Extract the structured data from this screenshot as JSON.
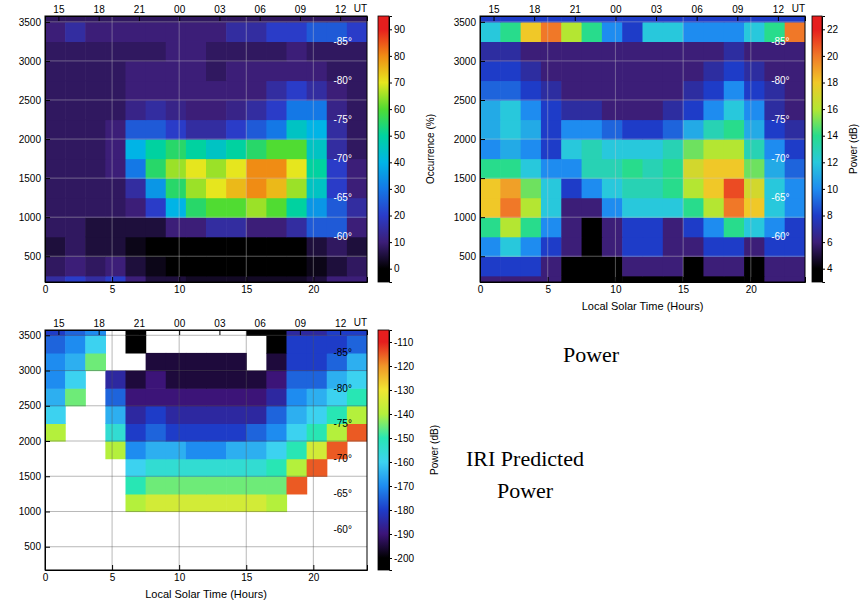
{
  "chart_data": [
    {
      "type": "heatmap",
      "xlim": [
        0,
        24
      ],
      "xticks": [
        0,
        5,
        10,
        15,
        20
      ],
      "ylim": [
        170,
        3575
      ],
      "yticks": [
        500,
        1000,
        1500,
        2000,
        2500,
        3000,
        3500
      ],
      "x2ticks": [
        {
          "value": 1,
          "label": "15"
        },
        {
          "value": 4,
          "label": "18"
        },
        {
          "value": 7,
          "label": "21"
        },
        {
          "value": 10,
          "label": "00"
        },
        {
          "value": 13,
          "label": "03"
        },
        {
          "value": 16,
          "label": "06"
        },
        {
          "value": 19,
          "label": "09"
        },
        {
          "value": 22,
          "label": "12"
        }
      ],
      "x2_label": "UT",
      "grid": true,
      "x_edges": [
        0,
        1.5,
        3,
        4.5,
        6,
        7.5,
        9,
        10.5,
        12,
        13.5,
        15,
        16.5,
        18,
        19.5,
        21,
        22.5,
        24
      ],
      "y_edges": [
        0,
        250,
        500,
        750,
        1000,
        1250,
        1500,
        1750,
        2000,
        2250,
        2500,
        2750,
        3000,
        3250,
        3500,
        3750
      ],
      "z": [
        [
          15,
          20,
          15,
          20,
          10,
          5,
          5,
          3,
          3,
          3,
          3,
          3,
          3,
          5,
          10,
          10
        ],
        [
          8,
          10,
          8,
          10,
          5,
          2,
          0,
          0,
          0,
          0,
          0,
          0,
          0,
          2,
          5,
          8
        ],
        [
          5,
          8,
          5,
          5,
          2,
          0,
          0,
          0,
          0,
          0,
          0,
          0,
          0,
          5,
          8,
          5
        ],
        [
          8,
          8,
          5,
          5,
          5,
          5,
          10,
          10,
          15,
          15,
          10,
          10,
          15,
          25,
          25,
          10
        ],
        [
          8,
          8,
          8,
          8,
          10,
          20,
          40,
          55,
          60,
          60,
          65,
          60,
          50,
          35,
          25,
          15
        ],
        [
          8,
          8,
          8,
          8,
          15,
          35,
          55,
          65,
          70,
          75,
          80,
          75,
          65,
          45,
          20,
          10
        ],
        [
          8,
          8,
          8,
          10,
          30,
          55,
          65,
          70,
          65,
          70,
          80,
          80,
          70,
          50,
          20,
          10
        ],
        [
          8,
          8,
          8,
          10,
          40,
          50,
          55,
          50,
          45,
          50,
          55,
          60,
          60,
          45,
          15,
          8
        ],
        [
          8,
          8,
          8,
          10,
          25,
          25,
          20,
          15,
          15,
          20,
          25,
          30,
          45,
          40,
          15,
          8
        ],
        [
          8,
          8,
          8,
          8,
          12,
          15,
          12,
          10,
          10,
          12,
          15,
          20,
          30,
          30,
          12,
          8
        ],
        [
          8,
          8,
          8,
          8,
          10,
          10,
          10,
          10,
          10,
          10,
          10,
          15,
          20,
          15,
          10,
          8
        ],
        [
          8,
          8,
          8,
          8,
          10,
          10,
          10,
          10,
          8,
          10,
          10,
          10,
          10,
          10,
          8,
          8
        ],
        [
          8,
          8,
          8,
          8,
          8,
          8,
          10,
          10,
          8,
          8,
          8,
          8,
          10,
          8,
          8,
          8
        ],
        [
          10,
          15,
          10,
          10,
          10,
          10,
          10,
          10,
          10,
          15,
          15,
          20,
          20,
          25,
          25,
          20
        ],
        [
          8,
          8,
          8,
          8,
          8,
          8,
          8,
          8,
          8,
          8,
          8,
          8,
          8,
          8,
          8,
          8
        ]
      ],
      "colorbar": {
        "label": "Occurrence (%)",
        "range": [
          -5,
          95
        ],
        "ticks": [
          0,
          10,
          20,
          30,
          40,
          50,
          60,
          70,
          80,
          90
        ],
        "colors": [
          "#000000",
          "#3c1e78",
          "#2a3cc8",
          "#1478e6",
          "#00b4e6",
          "#00d2a0",
          "#50dc32",
          "#e6e61e",
          "#f08c14",
          "#e61e1e"
        ]
      },
      "annotations": [
        {
          "text": "-85°",
          "x": 21.5,
          "y": 3250
        },
        {
          "text": "-80°",
          "x": 21.5,
          "y": 2750
        },
        {
          "text": "-75°",
          "x": 21.5,
          "y": 2250
        },
        {
          "text": "-70°",
          "x": 21.5,
          "y": 1750
        },
        {
          "text": "-65°",
          "x": 21.5,
          "y": 1250
        },
        {
          "text": "-60°",
          "x": 21.5,
          "y": 750
        }
      ]
    },
    {
      "type": "heatmap",
      "title": "Power",
      "x_label": "Local Solar Time (Hours)",
      "xlim": [
        0,
        24
      ],
      "xticks": [
        0,
        5,
        10,
        15,
        20
      ],
      "ylim": [
        170,
        3575
      ],
      "yticks": [
        500,
        1000,
        1500,
        2000,
        2500,
        3000,
        3500
      ],
      "x2ticks": [
        {
          "value": 1,
          "label": "15"
        },
        {
          "value": 4,
          "label": "18"
        },
        {
          "value": 7,
          "label": "21"
        },
        {
          "value": 10,
          "label": "00"
        },
        {
          "value": 13,
          "label": "03"
        },
        {
          "value": 16,
          "label": "06"
        },
        {
          "value": 19,
          "label": "09"
        },
        {
          "value": 22,
          "label": "12"
        }
      ],
      "x2_label": "UT",
      "grid": true,
      "x_edges": [
        0,
        1.5,
        3,
        4.5,
        6,
        7.5,
        9,
        10.5,
        12,
        13.5,
        15,
        16.5,
        18,
        19.5,
        21,
        22.5,
        24
      ],
      "y_edges": [
        0,
        250,
        500,
        750,
        1000,
        1250,
        1500,
        1750,
        2000,
        2250,
        2500,
        2750,
        3000,
        3250,
        3500,
        3750
      ],
      "z": [
        [
          6,
          6,
          6,
          6,
          4,
          4,
          4,
          4,
          4,
          4,
          4,
          4,
          4,
          4,
          6,
          6
        ],
        [
          8,
          8,
          8,
          6,
          4,
          4,
          4,
          6,
          6,
          6,
          4,
          6,
          6,
          4,
          6,
          6
        ],
        [
          10,
          12,
          10,
          8,
          6,
          4,
          6,
          8,
          8,
          6,
          6,
          8,
          8,
          6,
          8,
          8
        ],
        [
          14,
          16,
          14,
          10,
          6,
          4,
          6,
          8,
          8,
          6,
          8,
          10,
          14,
          12,
          10,
          8
        ],
        [
          18,
          20,
          16,
          12,
          6,
          6,
          10,
          12,
          12,
          12,
          14,
          16,
          20,
          18,
          12,
          10
        ],
        [
          18,
          19,
          15,
          12,
          8,
          10,
          12,
          13,
          13,
          14,
          16,
          18,
          21,
          17,
          12,
          10
        ],
        [
          14,
          14,
          12,
          10,
          10,
          13,
          13,
          14,
          13,
          14,
          17,
          18,
          18,
          15,
          11,
          9
        ],
        [
          10,
          11,
          10,
          8,
          12,
          13,
          12,
          12,
          12,
          13,
          15,
          16,
          16,
          13,
          10,
          8
        ],
        [
          11,
          12,
          11,
          8,
          10,
          10,
          9,
          8,
          8,
          9,
          11,
          13,
          14,
          11,
          8,
          7
        ],
        [
          11,
          12,
          10,
          8,
          7,
          7,
          6,
          6,
          6,
          7,
          8,
          10,
          12,
          10,
          7,
          6
        ],
        [
          9,
          9,
          8,
          7,
          6,
          6,
          6,
          6,
          6,
          6,
          7,
          8,
          10,
          8,
          7,
          6
        ],
        [
          8,
          8,
          7,
          6,
          6,
          6,
          6,
          6,
          6,
          6,
          6,
          7,
          8,
          7,
          6,
          6
        ],
        [
          7,
          7,
          6,
          6,
          6,
          6,
          6,
          6,
          6,
          6,
          6,
          6,
          7,
          6,
          6,
          6
        ],
        [
          12,
          14,
          18,
          20,
          16,
          14,
          10,
          8,
          12,
          12,
          10,
          10,
          10,
          12,
          14,
          20
        ],
        [
          8,
          8,
          8,
          8,
          8,
          8,
          8,
          8,
          8,
          8,
          8,
          8,
          8,
          8,
          8,
          8
        ]
      ],
      "colorbar": {
        "label": "Power (dB)",
        "range": [
          3,
          23
        ],
        "ticks": [
          4,
          6,
          8,
          10,
          12,
          14,
          16,
          18,
          20,
          22
        ],
        "colors": [
          "#000000",
          "#3c1e78",
          "#1e3cc8",
          "#1e8cf0",
          "#28c8dc",
          "#28dc8c",
          "#b4e632",
          "#f0c828",
          "#f07828",
          "#e61e1e"
        ]
      },
      "annotations": [
        {
          "text": "-85°",
          "x": 21.5,
          "y": 3250
        },
        {
          "text": "-80°",
          "x": 21.5,
          "y": 2750
        },
        {
          "text": "-75°",
          "x": 21.5,
          "y": 2250
        },
        {
          "text": "-70°",
          "x": 21.5,
          "y": 1750
        },
        {
          "text": "-65°",
          "x": 21.5,
          "y": 1250
        },
        {
          "text": "-60°",
          "x": 21.5,
          "y": 750
        }
      ]
    },
    {
      "type": "heatmap",
      "title": "IRI Predicted Power",
      "x_label": "Local Solar Time (Hours)",
      "xlim": [
        0,
        24
      ],
      "xticks": [
        0,
        5,
        10,
        15,
        20
      ],
      "ylim": [
        170,
        3575
      ],
      "yticks": [
        500,
        1000,
        1500,
        2000,
        2500,
        3000,
        3500
      ],
      "x2ticks": [
        {
          "value": 1,
          "label": "15"
        },
        {
          "value": 4,
          "label": "18"
        },
        {
          "value": 7,
          "label": "21"
        },
        {
          "value": 10,
          "label": "00"
        },
        {
          "value": 13,
          "label": "03"
        },
        {
          "value": 16,
          "label": "06"
        },
        {
          "value": 19,
          "label": "09"
        },
        {
          "value": 22,
          "label": "12"
        }
      ],
      "x2_label": "UT",
      "grid": true,
      "x_edges": [
        0,
        1.5,
        3,
        4.5,
        6,
        7.5,
        9,
        10.5,
        12,
        13.5,
        15,
        16.5,
        18,
        19.5,
        21,
        22.5,
        24
      ],
      "y_edges": [
        0,
        250,
        500,
        750,
        1000,
        1250,
        1500,
        1750,
        2000,
        2250,
        2500,
        2750,
        3000,
        3250,
        3500,
        3750
      ],
      "z": [
        [
          null,
          null,
          null,
          null,
          null,
          null,
          null,
          null,
          null,
          null,
          null,
          null,
          null,
          null,
          null,
          null
        ],
        [
          null,
          null,
          null,
          null,
          null,
          null,
          null,
          null,
          null,
          null,
          null,
          null,
          null,
          null,
          null,
          null
        ],
        [
          null,
          null,
          null,
          null,
          null,
          null,
          null,
          null,
          null,
          null,
          null,
          null,
          null,
          null,
          null,
          null
        ],
        [
          null,
          null,
          null,
          null,
          null,
          null,
          null,
          null,
          null,
          null,
          null,
          null,
          null,
          null,
          null,
          null
        ],
        [
          null,
          null,
          null,
          null,
          -140,
          -135,
          -135,
          -135,
          -135,
          -135,
          -135,
          -140,
          null,
          null,
          null,
          null
        ],
        [
          null,
          null,
          null,
          null,
          -150,
          -145,
          -145,
          -145,
          -145,
          -145,
          -145,
          -145,
          -115,
          null,
          null,
          null
        ],
        [
          null,
          null,
          null,
          null,
          -160,
          -155,
          -155,
          -155,
          -155,
          -155,
          -155,
          -150,
          -140,
          -115,
          null,
          null
        ],
        [
          null,
          null,
          null,
          -140,
          -170,
          -165,
          -165,
          -170,
          -170,
          -165,
          -165,
          -160,
          -150,
          -135,
          -115,
          null
        ],
        [
          -140,
          null,
          null,
          -155,
          -180,
          -175,
          -180,
          -180,
          -180,
          -180,
          -175,
          -170,
          -160,
          -150,
          -140,
          -115
        ],
        [
          -160,
          null,
          null,
          -165,
          -185,
          -180,
          -185,
          -185,
          -185,
          -185,
          -185,
          -175,
          -165,
          -160,
          -150,
          -140
        ],
        [
          -165,
          -145,
          null,
          -175,
          -190,
          -190,
          -190,
          -190,
          -190,
          -190,
          -190,
          -185,
          -170,
          -165,
          -160,
          -150
        ],
        [
          -170,
          -160,
          null,
          -185,
          -195,
          -190,
          -195,
          -195,
          -195,
          -195,
          -195,
          -190,
          -175,
          -175,
          -165,
          -160
        ],
        [
          -170,
          -165,
          -145,
          null,
          null,
          -195,
          -195,
          -195,
          -195,
          -195,
          null,
          -195,
          -180,
          -180,
          -175,
          -165
        ],
        [
          -175,
          -170,
          -160,
          null,
          -200,
          null,
          null,
          null,
          null,
          null,
          null,
          -200,
          -180,
          -180,
          -180,
          -175
        ],
        [
          -180,
          -175,
          -170,
          null,
          -200,
          null,
          null,
          null,
          null,
          null,
          -200,
          -200,
          -185,
          -185,
          -180,
          -180
        ]
      ],
      "colorbar": {
        "label": "Power (dB)",
        "range": [
          -205,
          -105
        ],
        "ticks": [
          -200,
          -190,
          -180,
          -170,
          -160,
          -150,
          -140,
          -130,
          -120,
          -110
        ],
        "colors": [
          "#000000",
          "#3c1478",
          "#1e3cc8",
          "#1e8cf0",
          "#3cd2f0",
          "#28e6b4",
          "#b4f03c",
          "#f0e632",
          "#f09628",
          "#e61e1e"
        ]
      },
      "annotations": [
        {
          "text": "-85°",
          "x": 21.5,
          "y": 3250
        },
        {
          "text": "-80°",
          "x": 21.5,
          "y": 2750
        },
        {
          "text": "-75°",
          "x": 21.5,
          "y": 2250
        },
        {
          "text": "-70°",
          "x": 21.5,
          "y": 1750
        },
        {
          "text": "-65°",
          "x": 21.5,
          "y": 1250
        },
        {
          "text": "-60°",
          "x": 21.5,
          "y": 750
        }
      ]
    }
  ]
}
